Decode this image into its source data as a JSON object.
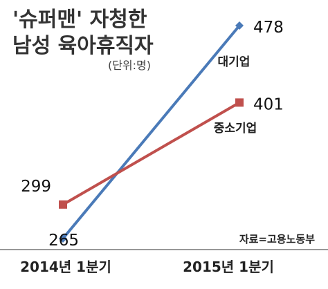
{
  "chart_data": {
    "type": "line",
    "title": [
      "'슈퍼맨' 자청한",
      "남성 육아휴직자"
    ],
    "unit_label": "(단위:명)",
    "source": "자료=고용노동부",
    "categories": [
      "2014년 1분기",
      "2015년 1분기"
    ],
    "series": [
      {
        "name": "대기업",
        "values": [
          265,
          478
        ],
        "color": "#4a7ab8",
        "marker": "diamond"
      },
      {
        "name": "중소기업",
        "values": [
          299,
          401
        ],
        "color": "#c0504d",
        "marker": "square"
      }
    ],
    "ylim": [
      265,
      478
    ],
    "grid": false,
    "legend": "inline labels"
  }
}
